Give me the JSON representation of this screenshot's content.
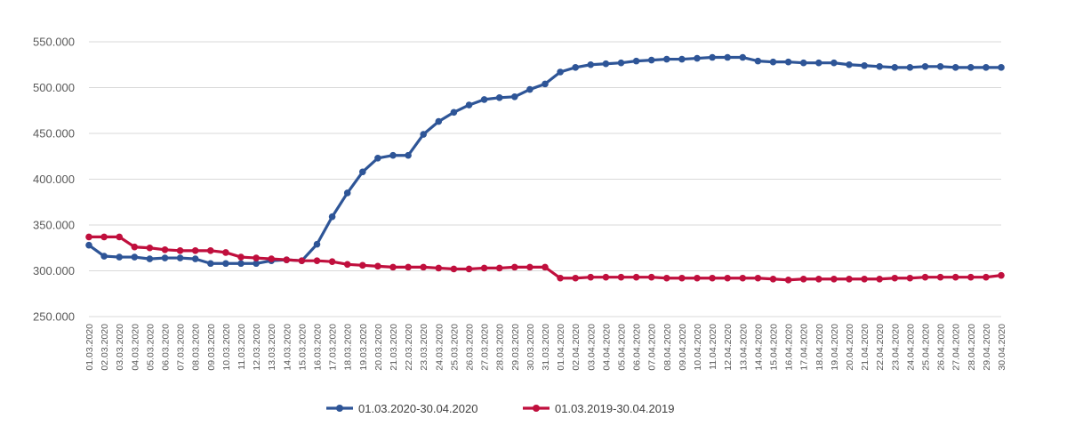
{
  "chart_data": {
    "type": "line",
    "title": "",
    "xlabel": "",
    "ylabel": "",
    "ylim": [
      250000,
      550000
    ],
    "ytick_labels": [
      "250.000",
      "300.000",
      "350.000",
      "400.000",
      "450.000",
      "500.000",
      "550.000"
    ],
    "ytick_values": [
      250000,
      300000,
      350000,
      400000,
      450000,
      500000,
      550000
    ],
    "grid": true,
    "legend_position": "bottom",
    "categories": [
      "01.03.2020",
      "02.03.2020",
      "03.03.2020",
      "04.03.2020",
      "05.03.2020",
      "06.03.2020",
      "07.03.2020",
      "08.03.2020",
      "09.03.2020",
      "10.03.2020",
      "11.03.2020",
      "12.03.2020",
      "13.03.2020",
      "14.03.2020",
      "15.03.2020",
      "16.03.2020",
      "17.03.2020",
      "18.03.2020",
      "19.03.2020",
      "20.03.2020",
      "21.03.2020",
      "22.03.2020",
      "23.03.2020",
      "24.03.2020",
      "25.03.2020",
      "26.03.2020",
      "27.03.2020",
      "28.03.2020",
      "29.03.2020",
      "30.03.2020",
      "31.03.2020",
      "01.04.2020",
      "02.04.2020",
      "03.04.2020",
      "04.04.2020",
      "05.04.2020",
      "06.04.2020",
      "07.04.2020",
      "08.04.2020",
      "09.04.2020",
      "10.04.2020",
      "11.04.2020",
      "12.04.2020",
      "13.04.2020",
      "14.04.2020",
      "15.04.2020",
      "16.04.2020",
      "17.04.2020",
      "18.04.2020",
      "19.04.2020",
      "20.04.2020",
      "21.04.2020",
      "22.04.2020",
      "23.04.2020",
      "24.04.2020",
      "25.04.2020",
      "26.04.2020",
      "27.04.2020",
      "28.04.2020",
      "29.04.2020",
      "30.04.2020"
    ],
    "series": [
      {
        "name": "01.03.2020-30.04.2020",
        "color": "#2e5597",
        "values": [
          328000,
          316000,
          315000,
          315000,
          313000,
          314000,
          314000,
          313000,
          308000,
          308000,
          308000,
          308000,
          311000,
          312000,
          311000,
          329000,
          359000,
          385000,
          408000,
          423000,
          426000,
          426000,
          449000,
          463000,
          473000,
          481000,
          487000,
          489000,
          490000,
          498000,
          504000,
          517000,
          522000,
          525000,
          526000,
          527000,
          529000,
          530000,
          531000,
          531000,
          532000,
          533000,
          533000,
          533000,
          529000,
          528000,
          528000,
          527000,
          527000,
          527000,
          525000,
          524000,
          523000,
          522000,
          522000,
          523000,
          523000,
          522000,
          522000,
          522000,
          522000
        ]
      },
      {
        "name": "01.03.2019-30.04.2019",
        "color": "#c00f3d",
        "values": [
          337000,
          337000,
          337000,
          326000,
          325000,
          323000,
          322000,
          322000,
          322000,
          320000,
          315000,
          314000,
          313000,
          312000,
          311000,
          311000,
          310000,
          307000,
          306000,
          305000,
          304000,
          304000,
          304000,
          303000,
          302000,
          302000,
          303000,
          303000,
          304000,
          304000,
          304000,
          292000,
          292000,
          293000,
          293000,
          293000,
          293000,
          293000,
          292000,
          292000,
          292000,
          292000,
          292000,
          292000,
          292000,
          291000,
          290000,
          291000,
          291000,
          291000,
          291000,
          291000,
          291000,
          292000,
          292000,
          293000,
          293000,
          293000,
          293000,
          293000,
          295000
        ]
      }
    ]
  }
}
